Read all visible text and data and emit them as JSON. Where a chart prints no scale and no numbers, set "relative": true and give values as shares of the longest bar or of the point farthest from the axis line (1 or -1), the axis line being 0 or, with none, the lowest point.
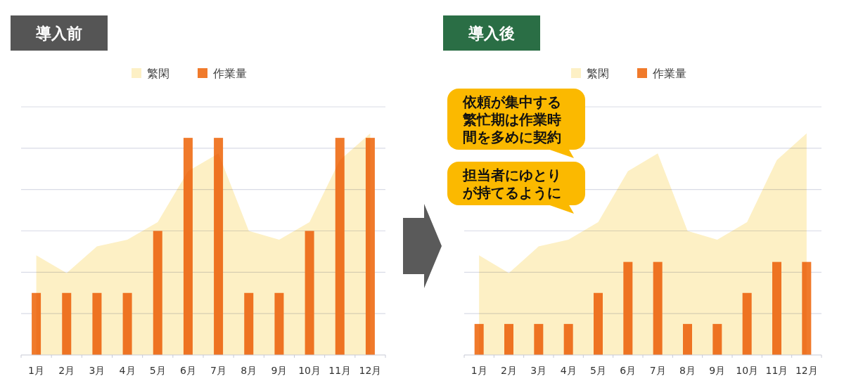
{
  "chart_data": [
    {
      "type": "bar",
      "title": "導入前",
      "categories": [
        "1月",
        "2月",
        "3月",
        "4月",
        "5月",
        "6月",
        "7月",
        "8月",
        "9月",
        "10月",
        "11月",
        "12月"
      ],
      "relative": true,
      "grid": "y",
      "legend": "top",
      "series": [
        {
          "name": "繁閑",
          "type": "area",
          "color": "#fdf0c5",
          "values": [
            0.45,
            0.37,
            0.49,
            0.52,
            0.6,
            0.83,
            0.91,
            0.56,
            0.52,
            0.6,
            0.88,
            1
          ]
        },
        {
          "name": "作業量",
          "type": "bar",
          "color": "#f07a2b",
          "values": [
            0.28,
            0.28,
            0.28,
            0.28,
            0.56,
            0.98,
            0.98,
            0.28,
            0.28,
            0.56,
            0.98,
            0.98
          ]
        }
      ]
    },
    {
      "type": "bar",
      "title": "導入後",
      "categories": [
        "1月",
        "2月",
        "3月",
        "4月",
        "5月",
        "6月",
        "7月",
        "8月",
        "9月",
        "10月",
        "11月",
        "12月"
      ],
      "relative": true,
      "grid": "y",
      "legend": "top",
      "series": [
        {
          "name": "繁閑",
          "type": "area",
          "color": "#fdf0c5",
          "values": [
            0.45,
            0.37,
            0.49,
            0.52,
            0.6,
            0.83,
            0.91,
            0.56,
            0.52,
            0.6,
            0.88,
            1
          ]
        },
        {
          "name": "作業量",
          "type": "bar",
          "color": "#f07a2b",
          "values": [
            0.14,
            0.14,
            0.14,
            0.14,
            0.28,
            0.42,
            0.42,
            0.14,
            0.14,
            0.28,
            0.42,
            0.42
          ]
        }
      ],
      "annotations": [
        "依頼が集中する繁忙期は作業時間を多めに契約",
        "担当者にゆとりが持てるように"
      ]
    }
  ]
}
